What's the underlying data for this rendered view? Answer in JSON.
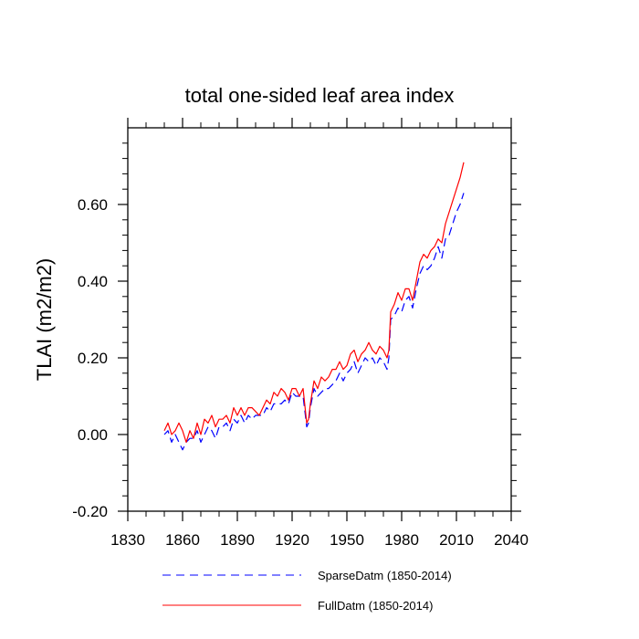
{
  "chart_data": {
    "type": "line",
    "title": "total one-sided leaf area index",
    "xlabel": "",
    "ylabel": "TLAI  (m2/m2)",
    "xlim": [
      1830,
      2040
    ],
    "ylim": [
      -0.2,
      0.8
    ],
    "xticks": [
      1830,
      1860,
      1890,
      1920,
      1950,
      1980,
      2010,
      2040
    ],
    "xtick_labels": [
      "1830",
      "1860",
      "1890",
      "1920",
      "1950",
      "1980",
      "2010",
      "2040"
    ],
    "yticks": [
      -0.2,
      0.0,
      0.2,
      0.4,
      0.6
    ],
    "ytick_labels": [
      "-0.20",
      "0.00",
      "0.20",
      "0.40",
      "0.60"
    ],
    "grid": false,
    "legend_position": "bottom",
    "series": [
      {
        "name": "SparseDatm (1850-2014)",
        "color": "#0000ff",
        "dash": "dashed",
        "x": [
          1850,
          1852,
          1854,
          1856,
          1858,
          1860,
          1862,
          1864,
          1866,
          1868,
          1870,
          1872,
          1874,
          1876,
          1878,
          1880,
          1882,
          1884,
          1886,
          1888,
          1890,
          1892,
          1894,
          1896,
          1898,
          1900,
          1902,
          1904,
          1906,
          1908,
          1910,
          1912,
          1914,
          1916,
          1918,
          1920,
          1922,
          1924,
          1926,
          1928,
          1929,
          1930,
          1932,
          1934,
          1936,
          1938,
          1940,
          1942,
          1944,
          1946,
          1948,
          1950,
          1952,
          1954,
          1956,
          1958,
          1960,
          1962,
          1964,
          1966,
          1968,
          1970,
          1972,
          1973,
          1974,
          1976,
          1978,
          1980,
          1982,
          1984,
          1986,
          1988,
          1990,
          1992,
          1994,
          1996,
          1998,
          2000,
          2002,
          2004,
          2006,
          2008,
          2010,
          2012,
          2014
        ],
        "values": [
          0.0,
          0.01,
          -0.02,
          0.0,
          -0.02,
          -0.04,
          -0.02,
          -0.01,
          -0.01,
          0.01,
          -0.02,
          0.0,
          0.02,
          0.01,
          -0.01,
          0.02,
          0.02,
          0.03,
          0.01,
          0.04,
          0.03,
          0.05,
          0.03,
          0.05,
          0.04,
          0.05,
          0.05,
          0.05,
          0.07,
          0.06,
          0.08,
          0.08,
          0.08,
          0.09,
          0.08,
          0.11,
          0.1,
          0.1,
          0.1,
          0.02,
          0.03,
          0.07,
          0.12,
          0.1,
          0.11,
          0.12,
          0.12,
          0.13,
          0.14,
          0.16,
          0.14,
          0.16,
          0.17,
          0.19,
          0.16,
          0.18,
          0.2,
          0.19,
          0.2,
          0.18,
          0.2,
          0.19,
          0.17,
          0.2,
          0.3,
          0.31,
          0.33,
          0.32,
          0.35,
          0.36,
          0.33,
          0.38,
          0.42,
          0.44,
          0.43,
          0.44,
          0.46,
          0.49,
          0.46,
          0.51,
          0.52,
          0.55,
          0.58,
          0.6,
          0.63
        ]
      },
      {
        "name": "FullDatm (1850-2014)",
        "color": "#ff0000",
        "dash": "solid",
        "x": [
          1850,
          1852,
          1854,
          1856,
          1858,
          1860,
          1862,
          1864,
          1866,
          1868,
          1870,
          1872,
          1874,
          1876,
          1878,
          1880,
          1882,
          1884,
          1886,
          1888,
          1890,
          1892,
          1894,
          1896,
          1898,
          1900,
          1902,
          1904,
          1906,
          1908,
          1910,
          1912,
          1914,
          1916,
          1918,
          1920,
          1922,
          1924,
          1926,
          1928,
          1929,
          1930,
          1932,
          1934,
          1936,
          1938,
          1940,
          1942,
          1944,
          1946,
          1948,
          1950,
          1952,
          1954,
          1956,
          1958,
          1960,
          1962,
          1964,
          1966,
          1968,
          1970,
          1972,
          1973,
          1974,
          1976,
          1978,
          1980,
          1982,
          1984,
          1986,
          1988,
          1990,
          1992,
          1994,
          1996,
          1998,
          2000,
          2002,
          2004,
          2006,
          2008,
          2010,
          2012,
          2014
        ],
        "values": [
          0.01,
          0.03,
          0.0,
          0.01,
          0.03,
          0.01,
          -0.02,
          0.01,
          -0.01,
          0.03,
          0.0,
          0.04,
          0.03,
          0.05,
          0.02,
          0.04,
          0.04,
          0.05,
          0.03,
          0.07,
          0.05,
          0.07,
          0.05,
          0.07,
          0.07,
          0.06,
          0.05,
          0.07,
          0.09,
          0.08,
          0.11,
          0.1,
          0.12,
          0.11,
          0.09,
          0.12,
          0.12,
          0.1,
          0.12,
          0.03,
          0.04,
          0.08,
          0.14,
          0.12,
          0.15,
          0.14,
          0.15,
          0.17,
          0.17,
          0.19,
          0.17,
          0.18,
          0.21,
          0.22,
          0.19,
          0.21,
          0.22,
          0.24,
          0.22,
          0.21,
          0.23,
          0.22,
          0.2,
          0.22,
          0.32,
          0.34,
          0.37,
          0.35,
          0.38,
          0.38,
          0.35,
          0.4,
          0.45,
          0.47,
          0.46,
          0.48,
          0.49,
          0.51,
          0.5,
          0.55,
          0.58,
          0.61,
          0.64,
          0.67,
          0.71
        ]
      }
    ]
  }
}
